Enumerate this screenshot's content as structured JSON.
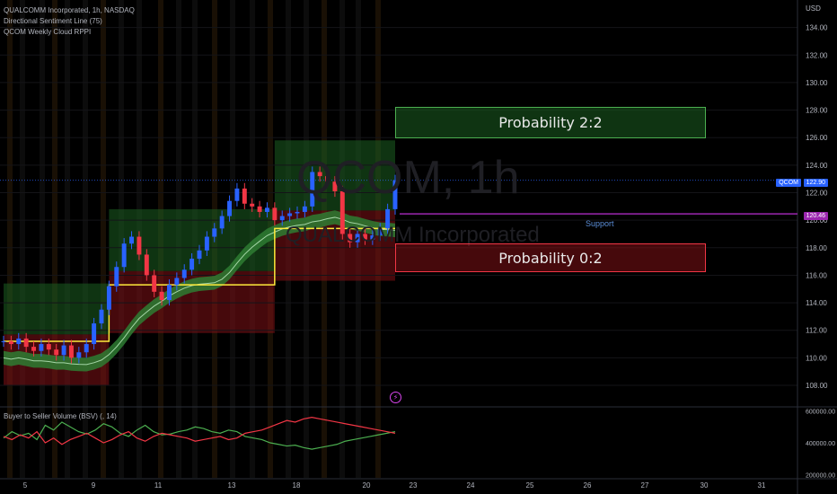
{
  "legend": {
    "main": "QUALCOMM Incorporated, 1h, NASDAQ",
    "indicator1": "Directional Sentiment Line (75)",
    "indicator2": "QCOM Weekly Cloud RPPI",
    "sub": "Buyer to Seller Volume (BSV) (, 14)"
  },
  "watermark": {
    "symbol": "QCOM, 1h",
    "name": "QUALCOMM Incorporated"
  },
  "annotations": {
    "prob_up": "Probability 2:2",
    "prob_down": "Probability 0:2",
    "support": "Support",
    "flash_icon": "lightning-icon"
  },
  "price_tags": {
    "last": "122.90",
    "support": "120.46",
    "last_label": "QCOM"
  },
  "colors": {
    "bull": "#26a69a",
    "bear": "#ef5350",
    "candle_up": "#2962ff",
    "candle_down": "#f23645",
    "yellow": "#ffeb3b",
    "support": "#9c27b0",
    "green_box": "#4caf50",
    "red_box": "#f23645"
  },
  "chart_data": [
    {
      "type": "line",
      "title": "QUALCOMM Incorporated, 1h, NASDAQ",
      "y_axis_title": "USD",
      "y_ticks": [
        108,
        110,
        112,
        114,
        116,
        118,
        120,
        122,
        124,
        126,
        128,
        130,
        132,
        134
      ],
      "y_tick_labels": [
        "108.00",
        "110.00",
        "112.00",
        "114.00",
        "116.00",
        "118.00",
        "120.00",
        "122.00",
        "124.00",
        "126.00",
        "128.00",
        "130.00",
        "132.00",
        "134.00"
      ],
      "ylim": [
        106.5,
        136
      ],
      "x_tick_labels": [
        "5",
        "9",
        "11",
        "13",
        "18",
        "20",
        "23",
        "24",
        "25",
        "26",
        "27",
        "30",
        "31"
      ],
      "series": [
        {
          "name": "QCOM",
          "values": [
            111.2,
            111.0,
            111.4,
            110.8,
            110.5,
            111.0,
            110.6,
            110.2,
            110.9,
            110.0,
            110.4,
            111.0,
            112.5,
            113.5,
            115.2,
            116.6,
            118.3,
            118.8,
            117.5,
            116.0,
            114.8,
            114.2,
            115.3,
            115.8,
            116.4,
            117.2,
            117.8,
            118.8,
            119.4,
            120.3,
            121.4,
            122.3,
            121.2,
            121.0,
            120.6,
            120.9,
            120.0,
            120.3,
            120.5,
            120.6,
            121.0,
            123.5,
            123.2,
            122.8,
            122.1,
            119.0,
            118.4,
            119.0,
            118.6,
            118.9,
            119.4,
            120.8,
            122.9
          ]
        }
      ],
      "overlays": {
        "directional_sentiment_line_steps": [
          {
            "from_bar": 0,
            "to_bar": 14,
            "value": 111.2
          },
          {
            "from_bar": 14,
            "to_bar": 36,
            "value": 115.3
          },
          {
            "from_bar": 36,
            "to_bar": 52,
            "value": 119.4
          }
        ],
        "weekly_cloud_levels": [
          {
            "from_bar": 0,
            "to_bar": 14,
            "support": 108.0,
            "resistance": 115.4
          },
          {
            "from_bar": 14,
            "to_bar": 36,
            "support": 111.8,
            "resistance": 120.8
          },
          {
            "from_bar": 36,
            "to_bar": 52,
            "support": 115.6,
            "resistance": 125.8
          }
        ],
        "support_level": 120.46,
        "last_price": 122.9
      }
    },
    {
      "type": "line",
      "title": "Buyer to Seller Volume (BSV) (, 14)",
      "y_tick_labels": [
        "200000.00",
        "400000.00",
        "600000.00"
      ],
      "y_ticks": [
        200000,
        400000,
        600000
      ],
      "ylim": [
        180000,
        620000
      ],
      "series": [
        {
          "name": "Buyer",
          "values": [
            430000,
            470000,
            445000,
            460000,
            420000,
            510000,
            480000,
            530000,
            500000,
            470000,
            455000,
            480000,
            520000,
            500000,
            460000,
            440000,
            480000,
            510000,
            470000,
            450000,
            455000,
            470000,
            480000,
            500000,
            490000,
            470000,
            460000,
            480000,
            470000,
            440000,
            430000,
            420000,
            400000,
            390000,
            380000,
            385000,
            370000,
            360000,
            370000,
            380000,
            390000,
            410000,
            420000,
            430000,
            440000,
            450000,
            460000,
            470000
          ]
        },
        {
          "name": "Seller",
          "values": [
            440000,
            420000,
            450000,
            430000,
            470000,
            400000,
            430000,
            390000,
            420000,
            440000,
            460000,
            430000,
            400000,
            420000,
            450000,
            470000,
            430000,
            410000,
            440000,
            460000,
            450000,
            440000,
            430000,
            410000,
            420000,
            430000,
            440000,
            420000,
            430000,
            460000,
            470000,
            480000,
            500000,
            520000,
            540000,
            530000,
            550000,
            560000,
            550000,
            540000,
            530000,
            520000,
            510000,
            500000,
            490000,
            480000,
            470000,
            460000
          ]
        }
      ]
    }
  ]
}
